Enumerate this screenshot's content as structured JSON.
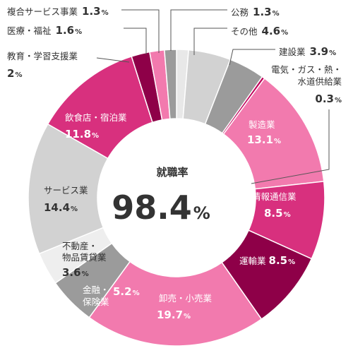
{
  "chart_data": {
    "type": "donut",
    "center": {
      "title": "就職率",
      "value": "98.4",
      "unit": "%"
    },
    "unit": "%",
    "slices": [
      {
        "name": "公務",
        "value": 1.3,
        "color": "#e8e8e8"
      },
      {
        "name": "その他",
        "value": 4.6,
        "color": "#d2d2d2"
      },
      {
        "name": "建設業",
        "value": 3.9,
        "color": "#9b9b9b"
      },
      {
        "name": "電気・ガス・熱・水道供給業",
        "value": 0.3,
        "color": "#c0005a"
      },
      {
        "name": "製造業",
        "value": 13.1,
        "color": "#f27aae"
      },
      {
        "name": "情報通信業",
        "value": 8.5,
        "color": "#d8307e"
      },
      {
        "name": "運輸業",
        "value": 8.5,
        "color": "#8e0048"
      },
      {
        "name": "卸売・小売業",
        "value": 19.7,
        "color": "#f27aae"
      },
      {
        "name": "金融・保険業",
        "value": 5.2,
        "color": "#9b9b9b"
      },
      {
        "name": "不動産・物品賃貸業",
        "value": 3.6,
        "color": "#eeeeee"
      },
      {
        "name": "サービス業",
        "value": 14.4,
        "color": "#d2d2d2"
      },
      {
        "name": "飲食店・宿泊業",
        "value": 11.8,
        "color": "#d8307e"
      },
      {
        "name": "教育・学習支援業",
        "value": 2.0,
        "color": "#8e0048"
      },
      {
        "name": "医療・福祉",
        "value": 1.6,
        "color": "#f27aae"
      },
      {
        "name": "複合サービス事業",
        "value": 1.3,
        "color": "#9b9b9b"
      }
    ]
  }
}
